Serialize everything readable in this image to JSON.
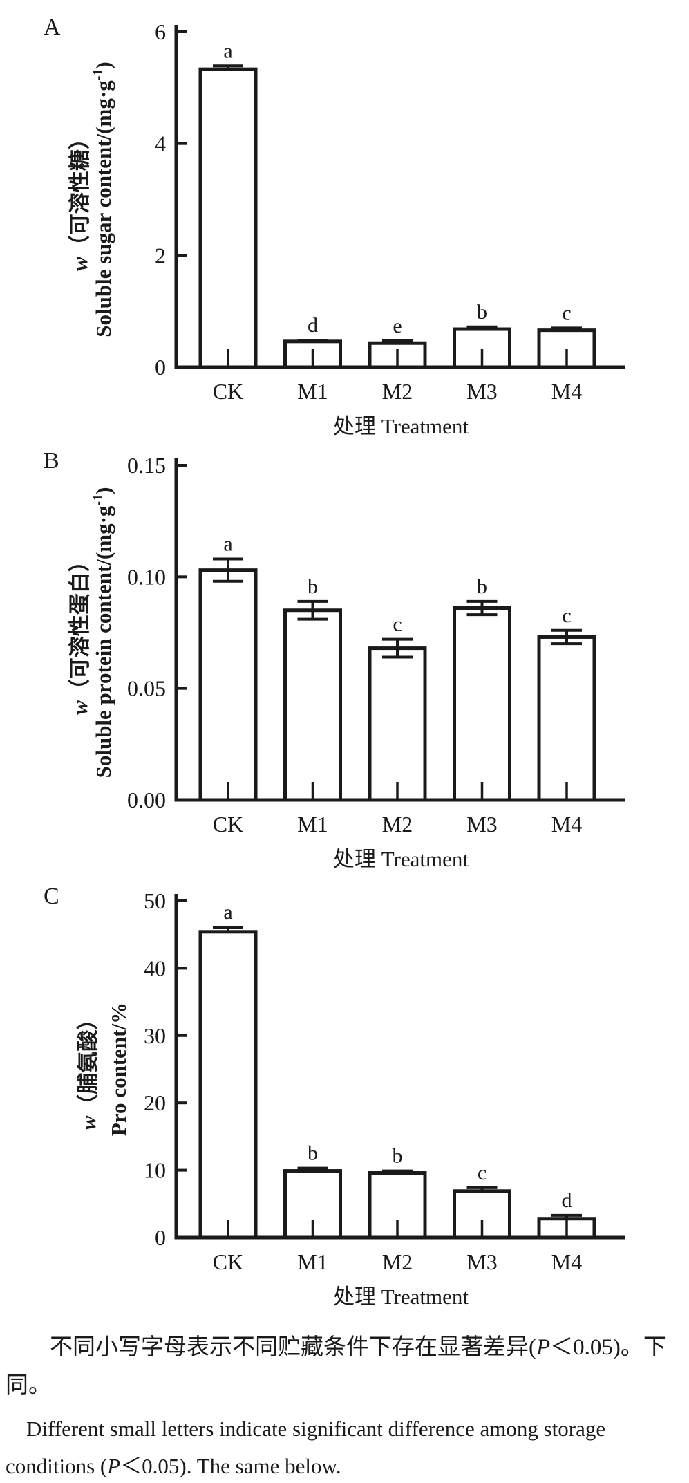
{
  "colors": {
    "ink": "#1a1a1a",
    "background": "#ffffff"
  },
  "chart_data": [
    {
      "type": "bar",
      "panel_label": "A",
      "categories": [
        "CK",
        "M1",
        "M2",
        "M3",
        "M4"
      ],
      "values": [
        5.33,
        0.46,
        0.43,
        0.68,
        0.66
      ],
      "errors": [
        0.06,
        0.02,
        0.04,
        0.04,
        0.04
      ],
      "sig_letters": [
        "a",
        "d",
        "e",
        "b",
        "c"
      ],
      "ylabel_zh": "w（可溶性糖）",
      "ylabel_en_main": "Soluble sugar content/(mg·g",
      "ylabel_en_sup": "-1",
      "ylabel_en_close": ")",
      "xlabel": "处理 Treatment",
      "ylim": [
        0,
        6
      ],
      "yticks": [
        "0",
        "2",
        "4",
        "6"
      ],
      "error_style": "upper",
      "bar_fill": "#ffffff",
      "legend": "none",
      "grid": "off"
    },
    {
      "type": "bar",
      "panel_label": "B",
      "categories": [
        "CK",
        "M1",
        "M2",
        "M3",
        "M4"
      ],
      "values": [
        0.103,
        0.085,
        0.068,
        0.086,
        0.073
      ],
      "errors": [
        0.005,
        0.004,
        0.004,
        0.003,
        0.003
      ],
      "sig_letters": [
        "a",
        "b",
        "c",
        "b",
        "c"
      ],
      "ylabel_zh": "w（可溶性蛋白）",
      "ylabel_en_main": "Soluble protein content/(mg·g",
      "ylabel_en_sup": "-1",
      "ylabel_en_close": ")",
      "xlabel": "处理 Treatment",
      "ylim": [
        0,
        0.15
      ],
      "yticks": [
        "0.00",
        "0.05",
        "0.10",
        "0.15"
      ],
      "error_style": "both",
      "bar_fill": "#ffffff",
      "legend": "none",
      "grid": "off"
    },
    {
      "type": "bar",
      "panel_label": "C",
      "categories": [
        "CK",
        "M1",
        "M2",
        "M3",
        "M4"
      ],
      "values": [
        45.4,
        9.9,
        9.6,
        6.9,
        2.8
      ],
      "errors": [
        0.7,
        0.4,
        0.3,
        0.5,
        0.5
      ],
      "sig_letters": [
        "a",
        "b",
        "b",
        "c",
        "d"
      ],
      "ylabel_zh": "w（脯氨酸）",
      "ylabel_en_main": "Pro content/%",
      "ylabel_en_sup": "",
      "ylabel_en_close": "",
      "xlabel": "处理 Treatment",
      "ylim": [
        0,
        50
      ],
      "yticks": [
        "0",
        "10",
        "20",
        "30",
        "40",
        "50"
      ],
      "error_style": "upper",
      "bar_fill": "#ffffff",
      "legend": "none",
      "grid": "off"
    }
  ],
  "caption": {
    "paragraphs": [
      {
        "lang": "zh",
        "lines": [
          [
            {
              "t": "不同小写字母表示不同贮藏条件下存在显著差异("
            },
            {
              "t": "P",
              "i": true
            },
            {
              "t": "＜0.05)。下"
            }
          ],
          [
            {
              "t": "同。"
            }
          ]
        ]
      },
      {
        "lang": "en",
        "lines": [
          [
            {
              "t": "Different small letters indicate significant difference among storage"
            }
          ],
          [
            {
              "t": "conditions ("
            },
            {
              "t": "P",
              "i": true
            },
            {
              "t": "＜0.05). The same below."
            }
          ]
        ]
      }
    ]
  }
}
